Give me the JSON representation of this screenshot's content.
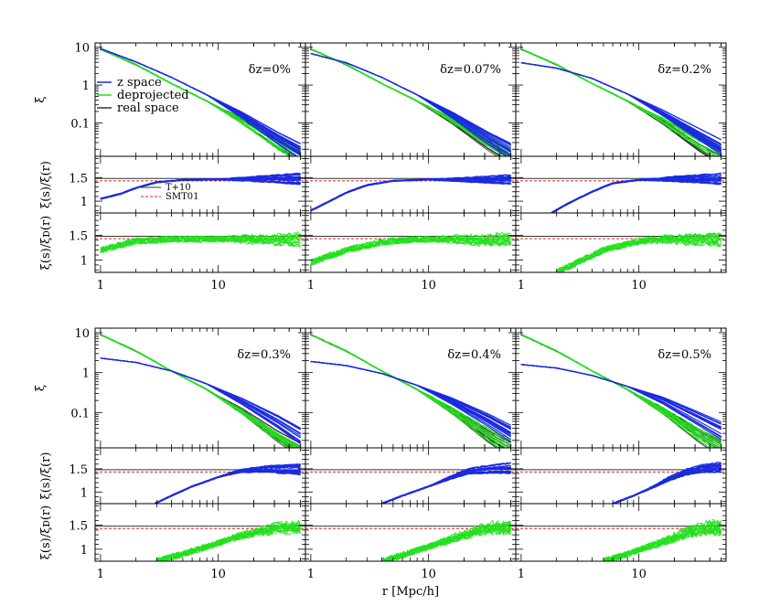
{
  "figure": {
    "xlabel": "r [Mpc/h]",
    "ylabels": {
      "top": "ξ",
      "middle": "ξ(s)/ξ(r)",
      "bottom": "ξ(s)/ξ_D(r)",
      "bottom_display": "ξ(s)/ξᴅ(r)"
    },
    "legend_top": [
      {
        "label": "z space",
        "color": "#1b2be0"
      },
      {
        "label": "deprojected",
        "color": "#22e01b"
      },
      {
        "label": "real space",
        "color": "#333333"
      }
    ],
    "legend_ratio": [
      {
        "label": "T+10",
        "color": "#333333",
        "style": "solid"
      },
      {
        "label": "SMT01",
        "color": "#e02020",
        "style": "dashed"
      }
    ],
    "x_tick_labels": [
      "1",
      "10"
    ],
    "top_tick_labels": [
      "10",
      "1",
      "0.1"
    ],
    "ratio_tick_labels": [
      "1.5",
      "1"
    ]
  },
  "chart_data": {
    "type": "line",
    "x_scale": "log",
    "xlim": [
      0.9,
      55
    ],
    "subplots": {
      "top": {
        "ylabel": "ξ",
        "y_scale": "log",
        "ylim": [
          0.013,
          13
        ]
      },
      "middle": {
        "ylabel": "ξ(s)/ξ(r)",
        "y_scale": "linear",
        "ylim": [
          0.75,
          1.95
        ]
      },
      "bottom": {
        "ylabel": "ξ(s)/ξ_D(r)",
        "y_scale": "linear",
        "ylim": [
          0.75,
          1.95
        ]
      }
    },
    "reference_lines": {
      "T+10": 1.48,
      "SMT01": 1.43
    },
    "panels": [
      {
        "label": "δz=0%",
        "series": [
          {
            "name": "z space",
            "x": [
              1,
              2,
              4,
              8,
              16,
              32,
              50
            ],
            "y": [
              9.2,
              4.1,
              1.6,
              0.55,
              0.16,
              0.04,
              0.018
            ]
          },
          {
            "name": "deprojected",
            "x": [
              1,
              2,
              4,
              8,
              16,
              32,
              50
            ],
            "y": [
              8.9,
              3.5,
              1.1,
              0.38,
              0.11,
              0.028,
              0.013
            ]
          },
          {
            "name": "real space",
            "x": [
              1,
              2,
              4,
              8,
              16,
              32,
              50
            ],
            "y": [
              8.8,
              3.4,
              1.1,
              0.37,
              0.11,
              0.026,
              0.012
            ]
          },
          {
            "name": "ξ(s)/ξ(r)",
            "x": [
              1,
              1.5,
              2,
              3,
              5,
              10,
              20,
              50
            ],
            "y": [
              1.05,
              1.16,
              1.28,
              1.4,
              1.45,
              1.46,
              1.47,
              1.47
            ]
          },
          {
            "name": "ξ(s)/ξ_D(r)",
            "x": [
              1,
              2,
              4,
              8,
              16,
              32,
              50
            ],
            "y": [
              1.2,
              1.38,
              1.42,
              1.42,
              1.42,
              1.4,
              1.4
            ]
          }
        ]
      },
      {
        "label": "δz=0.07%",
        "series": [
          {
            "name": "z space",
            "x": [
              1,
              2,
              4,
              8,
              16,
              32,
              50
            ],
            "y": [
              6.8,
              3.9,
              1.6,
              0.55,
              0.16,
              0.04,
              0.018
            ]
          },
          {
            "name": "deprojected",
            "x": [
              1,
              2,
              4,
              8,
              16,
              32,
              50
            ],
            "y": [
              9.0,
              3.5,
              1.1,
              0.38,
              0.11,
              0.028,
              0.013
            ]
          },
          {
            "name": "real space",
            "x": [
              1,
              2,
              4,
              8,
              16,
              32,
              50
            ],
            "y": [
              8.8,
              3.4,
              1.1,
              0.37,
              0.11,
              0.026,
              0.012
            ]
          },
          {
            "name": "ξ(s)/ξ(r)",
            "x": [
              1,
              1.5,
              2,
              3,
              5,
              10,
              20,
              50
            ],
            "y": [
              0.8,
              1.02,
              1.18,
              1.34,
              1.43,
              1.46,
              1.46,
              1.47
            ]
          },
          {
            "name": "ξ(s)/ξ_D(r)",
            "x": [
              1,
              2,
              4,
              8,
              16,
              32,
              50
            ],
            "y": [
              0.95,
              1.2,
              1.36,
              1.42,
              1.42,
              1.4,
              1.4
            ]
          }
        ]
      },
      {
        "label": "δz=0.2%",
        "series": [
          {
            "name": "z space",
            "x": [
              1,
              2,
              4,
              8,
              16,
              32,
              50
            ],
            "y": [
              3.9,
              2.8,
              1.5,
              0.58,
              0.18,
              0.05,
              0.022
            ]
          },
          {
            "name": "deprojected",
            "x": [
              1,
              2,
              4,
              8,
              16,
              32,
              50
            ],
            "y": [
              9.0,
              3.5,
              1.1,
              0.38,
              0.11,
              0.028,
              0.013
            ]
          },
          {
            "name": "real space",
            "x": [
              1,
              2,
              4,
              8,
              16,
              32,
              50
            ],
            "y": [
              8.8,
              3.4,
              1.1,
              0.37,
              0.11,
              0.026,
              0.012
            ]
          },
          {
            "name": "ξ(s)/ξ(r)",
            "x": [
              1.8,
              2.5,
              4,
              6,
              10,
              20,
              50
            ],
            "y": [
              0.75,
              0.95,
              1.2,
              1.38,
              1.45,
              1.47,
              1.47
            ]
          },
          {
            "name": "ξ(s)/ξ_D(r)",
            "x": [
              2,
              3,
              5,
              10,
              16,
              32,
              50
            ],
            "y": [
              0.75,
              0.95,
              1.2,
              1.38,
              1.42,
              1.4,
              1.4
            ]
          }
        ]
      },
      {
        "label": "δz=0.3%",
        "series": [
          {
            "name": "z space",
            "x": [
              1,
              2,
              4,
              8,
              16,
              32,
              50
            ],
            "y": [
              2.3,
              1.8,
              1.1,
              0.52,
              0.19,
              0.06,
              0.026
            ]
          },
          {
            "name": "deprojected",
            "x": [
              1,
              2,
              4,
              8,
              16,
              32,
              50
            ],
            "y": [
              9.0,
              3.5,
              1.1,
              0.38,
              0.11,
              0.028,
              0.013
            ]
          },
          {
            "name": "real space",
            "x": [
              1,
              2,
              4,
              8,
              16,
              32,
              50
            ],
            "y": [
              8.8,
              3.4,
              1.1,
              0.37,
              0.11,
              0.026,
              0.012
            ]
          },
          {
            "name": "ξ(s)/ξ(r)",
            "x": [
              2.9,
              4,
              6,
              10,
              15,
              25,
              50
            ],
            "y": [
              0.75,
              0.92,
              1.12,
              1.32,
              1.45,
              1.5,
              1.5
            ]
          },
          {
            "name": "ξ(s)/ξ_D(r)",
            "x": [
              3,
              5,
              8,
              12,
              20,
              32,
              50
            ],
            "y": [
              0.75,
              0.9,
              1.05,
              1.2,
              1.35,
              1.45,
              1.45
            ]
          }
        ]
      },
      {
        "label": "δz=0.4%",
        "series": [
          {
            "name": "z space",
            "x": [
              1,
              2,
              4,
              8,
              16,
              32,
              50
            ],
            "y": [
              1.9,
              1.5,
              0.95,
              0.48,
              0.19,
              0.065,
              0.03
            ]
          },
          {
            "name": "deprojected",
            "x": [
              1,
              2,
              4,
              8,
              16,
              32,
              50
            ],
            "y": [
              9.0,
              3.5,
              1.1,
              0.38,
              0.11,
              0.028,
              0.013
            ]
          },
          {
            "name": "real space",
            "x": [
              1,
              2,
              4,
              8,
              16,
              32,
              50
            ],
            "y": [
              8.8,
              3.4,
              1.1,
              0.37,
              0.11,
              0.026,
              0.012
            ]
          },
          {
            "name": "ξ(s)/ξ(r)",
            "x": [
              4,
              6,
              10,
              15,
              22,
              35,
              50
            ],
            "y": [
              0.75,
              0.92,
              1.12,
              1.3,
              1.45,
              1.5,
              1.52
            ]
          },
          {
            "name": "ξ(s)/ξ_D(r)",
            "x": [
              4,
              6,
              10,
              15,
              25,
              35,
              50
            ],
            "y": [
              0.75,
              0.88,
              1.05,
              1.2,
              1.38,
              1.45,
              1.45
            ]
          }
        ]
      },
      {
        "label": "δz=0.5%",
        "series": [
          {
            "name": "z space",
            "x": [
              1,
              2,
              4,
              8,
              16,
              32,
              50
            ],
            "y": [
              1.6,
              1.3,
              0.85,
              0.45,
              0.2,
              0.07,
              0.035
            ]
          },
          {
            "name": "deprojected",
            "x": [
              1,
              2,
              4,
              8,
              16,
              32,
              50
            ],
            "y": [
              9.0,
              3.5,
              1.1,
              0.38,
              0.11,
              0.028,
              0.013
            ]
          },
          {
            "name": "real space",
            "x": [
              1,
              2,
              4,
              8,
              16,
              32,
              50
            ],
            "y": [
              8.8,
              3.4,
              1.1,
              0.37,
              0.11,
              0.026,
              0.012
            ]
          },
          {
            "name": "ξ(s)/ξ(r)",
            "x": [
              6,
              9,
              13,
              18,
              25,
              35,
              50
            ],
            "y": [
              0.75,
              0.92,
              1.1,
              1.28,
              1.42,
              1.5,
              1.52
            ]
          },
          {
            "name": "ξ(s)/ξ_D(r)",
            "x": [
              5,
              8,
              12,
              18,
              28,
              40,
              50
            ],
            "y": [
              0.75,
              0.9,
              1.05,
              1.2,
              1.38,
              1.45,
              1.45
            ]
          }
        ]
      }
    ]
  }
}
